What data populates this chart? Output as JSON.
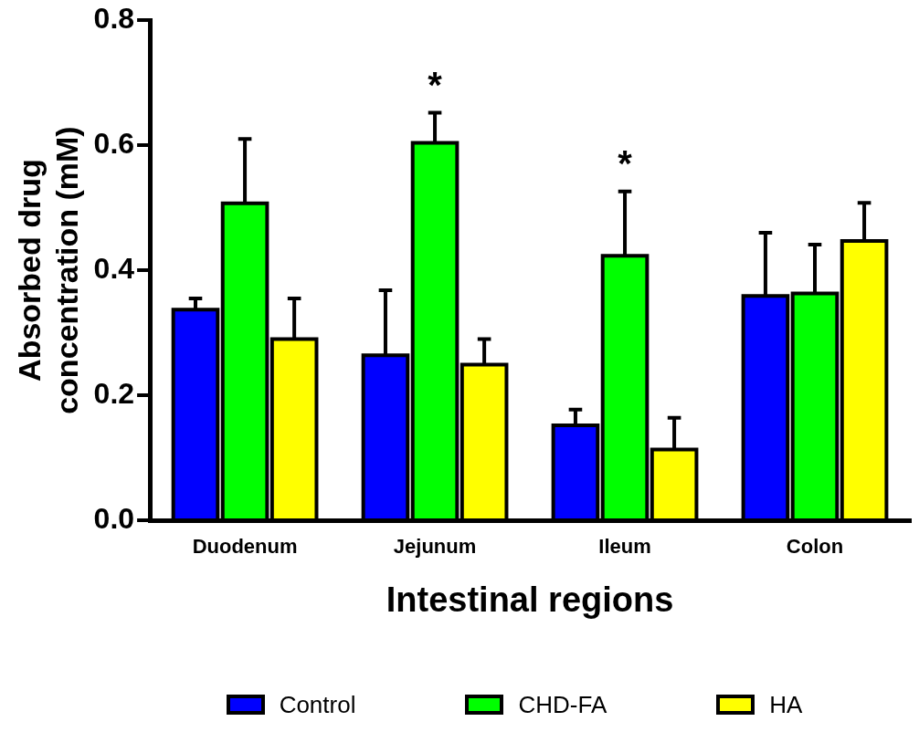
{
  "chart_data": {
    "type": "bar",
    "xlabel": "Intestinal regions",
    "ylabel": "Absorbed drug\nconcentration (mM)",
    "categories": [
      "Duodenum",
      "Jejunum",
      "Ileum",
      "Colon"
    ],
    "series": [
      {
        "name": "Control",
        "color": "#0000ff",
        "values": [
          0.337,
          0.264,
          0.152,
          0.359
        ],
        "errors": [
          [
            0.337,
            0.355
          ],
          [
            0.264,
            0.368
          ],
          [
            0.152,
            0.177
          ],
          [
            0.359,
            0.46
          ]
        ]
      },
      {
        "name": "CHD-FA",
        "color": "#00ff00",
        "values": [
          0.507,
          0.604,
          0.423,
          0.363
        ],
        "errors": [
          [
            0.507,
            0.61
          ],
          [
            0.604,
            0.652
          ],
          [
            0.423,
            0.526
          ],
          [
            0.363,
            0.441
          ]
        ]
      },
      {
        "name": "HA",
        "color": "#ffff00",
        "values": [
          0.29,
          0.249,
          0.113,
          0.447
        ],
        "errors": [
          [
            0.29,
            0.355
          ],
          [
            0.249,
            0.29
          ],
          [
            0.113,
            0.164
          ],
          [
            0.447,
            0.508
          ]
        ]
      }
    ],
    "ylim": [
      0,
      0.8
    ],
    "yticks": [
      {
        "value": 0,
        "label": "0.0"
      },
      {
        "value": 0.2,
        "label": "0.2"
      },
      {
        "value": 0.4,
        "label": "0.4"
      },
      {
        "value": 0.6,
        "label": "0.6"
      },
      {
        "value": 0.8,
        "label": "0.8"
      }
    ],
    "grid": false,
    "legend": "bottom",
    "annotations": [
      {
        "text": "*",
        "x": "Jejunum",
        "y": 0.652
      },
      {
        "text": "*",
        "x": "Ileum",
        "y": 0.526
      }
    ]
  }
}
